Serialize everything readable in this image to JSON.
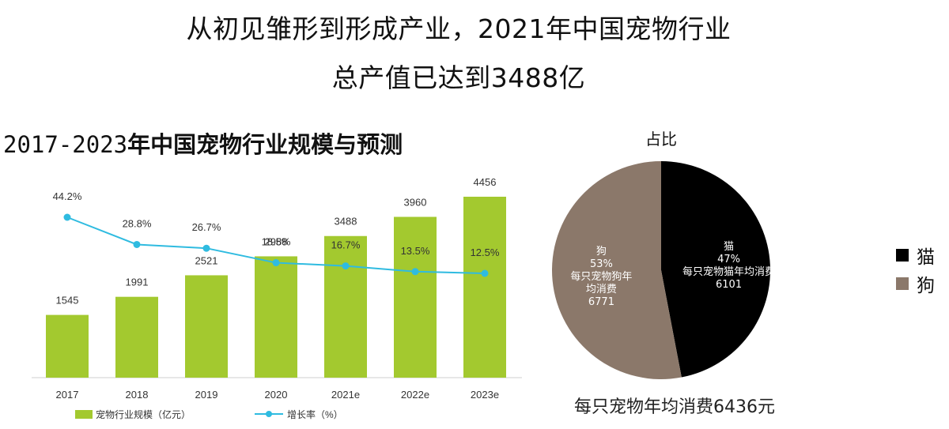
{
  "headline": {
    "line1": "从初见雏形到形成产业，2021年中国宠物行业",
    "line2": "总产值已达到3488亿"
  },
  "left_title": {
    "years": "2017-2023",
    "text": "年中国宠物行业规模与预测"
  },
  "footer_note": "每只宠物年均消费6436元",
  "colors": {
    "bar": "#a3c92f",
    "line": "#2fbbe0",
    "cat": "#000000",
    "dog": "#8b786a"
  },
  "chart_data": [
    {
      "type": "bar",
      "categories": [
        "2017",
        "2018",
        "2019",
        "2020",
        "2021e",
        "2022e",
        "2023e"
      ],
      "series": [
        {
          "name": "宠物行业规模（亿元）",
          "kind": "bar",
          "values": [
            1545,
            1991,
            2521,
            2988,
            3488,
            3960,
            4456
          ],
          "labels": [
            "1545",
            "1991",
            "2521",
            "2988",
            "3488",
            "3960",
            "4456"
          ]
        },
        {
          "name": "增长率（%）",
          "kind": "line",
          "values": [
            44.2,
            28.8,
            26.7,
            18.5,
            16.7,
            13.5,
            12.5
          ],
          "labels": [
            "44.2%",
            "28.8%",
            "26.7%",
            "18.5%",
            "16.7%",
            "13.5%",
            "12.5%"
          ]
        }
      ],
      "legend_position": "bottom-left",
      "grid": false
    },
    {
      "type": "pie",
      "title": "占比",
      "slices": [
        {
          "name": "猫",
          "value": 47,
          "label_lines": [
            "猫",
            "47%",
            "每只宠物猫年均消费",
            "6101"
          ]
        },
        {
          "name": "狗",
          "value": 53,
          "label_lines": [
            "狗",
            "53%",
            "每只宠物狗年",
            "均消费",
            "6771"
          ]
        }
      ],
      "legend": [
        "猫",
        "狗"
      ],
      "legend_position": "right"
    }
  ]
}
